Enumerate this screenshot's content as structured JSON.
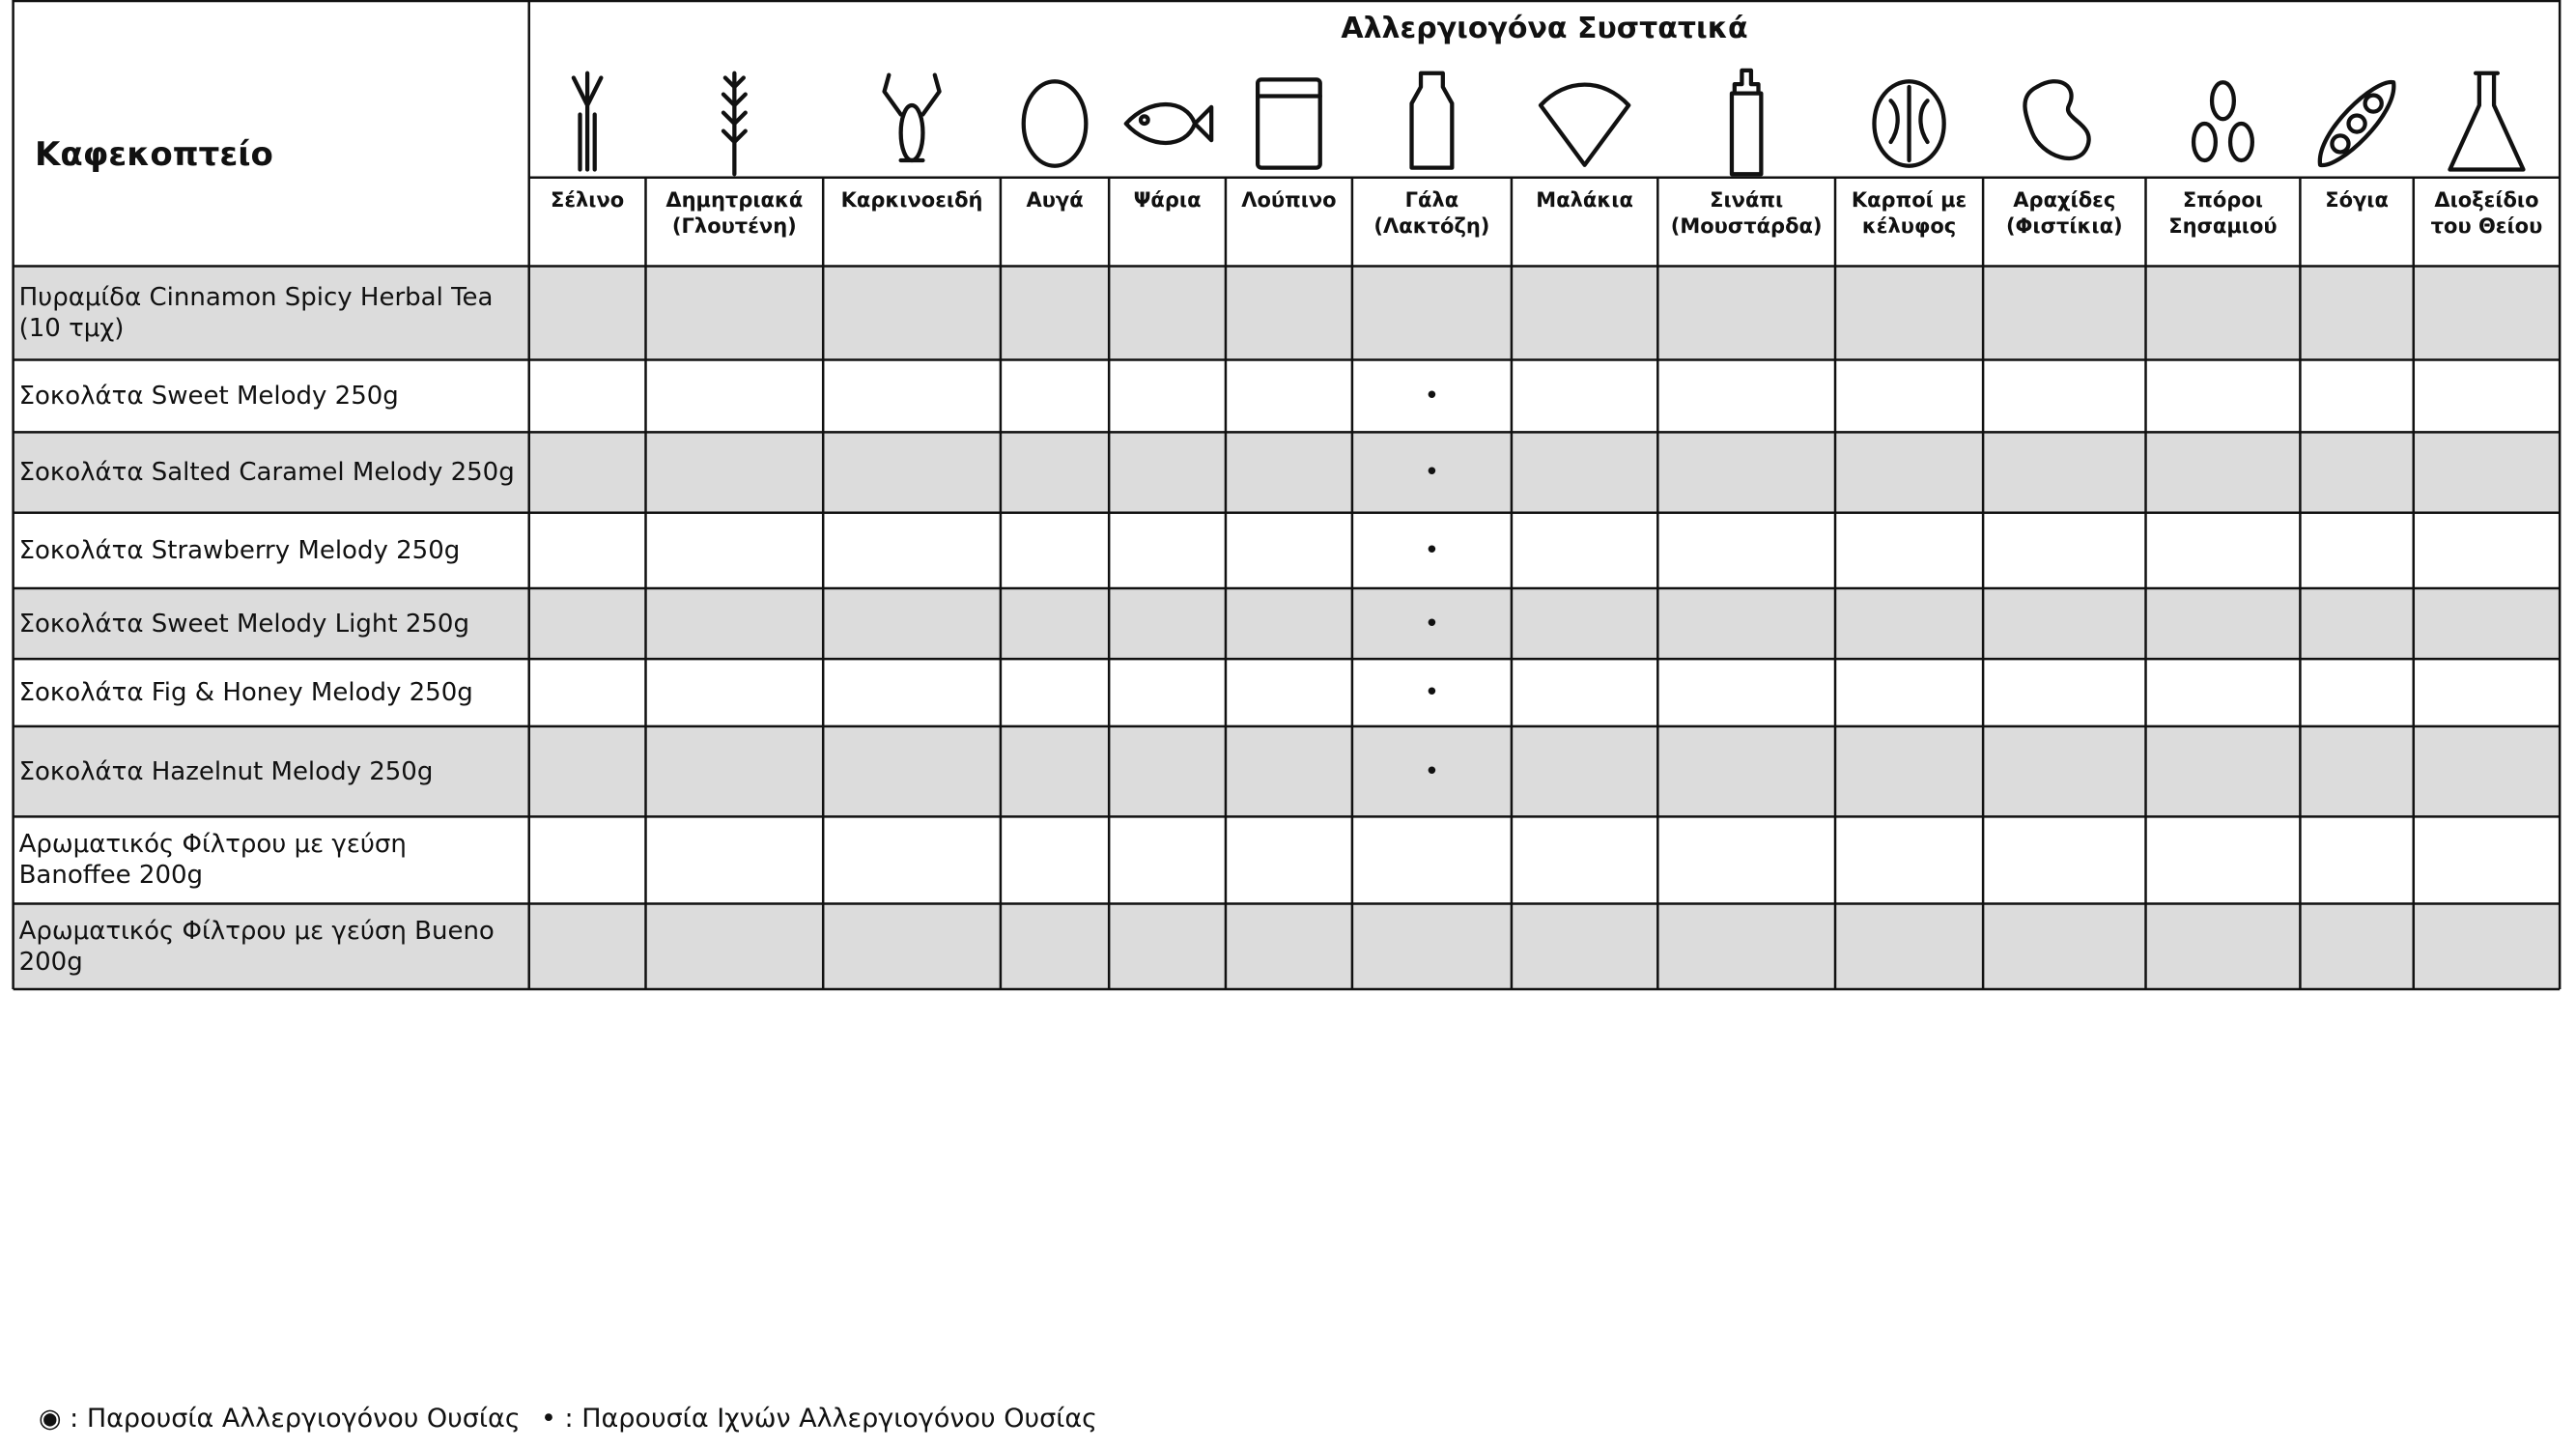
{
  "header": {
    "title": "Καφεκοπτείο",
    "group_title": "Αλλεργιογόνα Συστατικά"
  },
  "table": {
    "columns": [
      "Σέλινο",
      "Δημητριακά\n(Γλουτένη)",
      "Καρκινοειδή",
      "Αυγά",
      "Ψάρια",
      "Λούπινο",
      "Γάλα\n(Λακτόζη)",
      "Μαλάκια",
      "Σινάπι\n(Μουστάρδα)",
      "Καρποί με\nκέλυφος",
      "Αραχίδες\n(Φιστίκια)",
      "Σπόροι\nΣησαμιού",
      "Σόγια",
      "Διοξείδιο\nτου Θείου"
    ],
    "rows": [
      {
        "name": "Πυραμίδα Cinnamon Spicy Herbal Tea (10 τμχ)",
        "marks": []
      },
      {
        "name": "Σοκολάτα Sweet Melody 250g",
        "marks": [
          {
            "col": 6,
            "text": "•"
          }
        ]
      },
      {
        "name": "Σοκολάτα Salted Caramel Melody 250g",
        "marks": [
          {
            "col": 6,
            "text": "•"
          }
        ]
      },
      {
        "name": "Σοκολάτα Strawberry Melody 250g",
        "marks": [
          {
            "col": 6,
            "text": "•"
          }
        ]
      },
      {
        "name": "Σοκολάτα Sweet Melody Light 250g",
        "marks": [
          {
            "col": 6,
            "text": "•"
          }
        ]
      },
      {
        "name": "Σοκολάτα Fig & Honey Melody 250g",
        "marks": [
          {
            "col": 6,
            "text": "•"
          }
        ]
      },
      {
        "name": "Σοκολάτα Hazelnut Melody 250g",
        "marks": [
          {
            "col": 6,
            "text": "•"
          }
        ]
      },
      {
        "name": "Αρωματικός Φίλτρου με γεύση Banoffee 200g",
        "marks": []
      },
      {
        "name": "Αρωματικός Φίλτρου με γεύση Bueno 200g",
        "marks": []
      }
    ]
  },
  "legend": [
    "◉ : Παρουσία Αλλεργιογόνου Ουσίας",
    "• : Παρουσία Ιχνών Αλλεργιογόνου Ουσίας"
  ]
}
